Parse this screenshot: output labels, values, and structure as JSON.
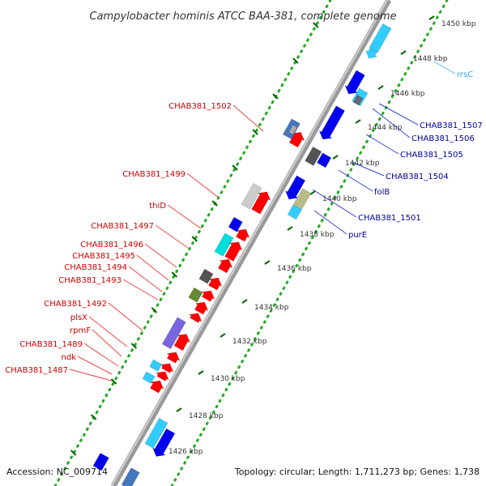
{
  "title": "Campylobacter hominis ATCC BAA-381, complete genome",
  "footer": {
    "accession": "Accession: NC_009714",
    "summary": "Topology: circular; Length: 1,711,273 bp; Genes: 1,738"
  },
  "colors": {
    "forward": "#ff0000",
    "reverse": "#0000ee",
    "rna": "#33ccff",
    "backbone": "#888888",
    "tick_dots": "#22aa22",
    "tick_major": "#006600",
    "label_forward": "#cc0000",
    "label_reverse": "#000099"
  },
  "ticks": [
    "1426 kbp",
    "1428 kbp",
    "1430 kbp",
    "1432 kbp",
    "1434 kbp",
    "1436 kbp",
    "1438 kbp",
    "1440 kbp",
    "1442 kbp",
    "1444 kbp",
    "1446 kbp",
    "1448 kbp",
    "1450 kbp"
  ],
  "labels_forward": [
    "CHAB381_1502",
    "CHAB381_1499",
    "thiD",
    "CHAB381_1497",
    "CHAB381_1496",
    "CHAB381_1495",
    "CHAB381_1494",
    "CHAB381_1493",
    "CHAB381_1492",
    "plsX",
    "rpmF",
    "CHAB381_1489",
    "ndk",
    "CHAB381_1487"
  ],
  "labels_reverse": [
    "rrsC",
    "CHAB381_1507",
    "CHAB381_1506",
    "CHAB381_1505",
    "CHAB381_1504",
    "folB",
    "CHAB381_1501",
    "purE"
  ]
}
